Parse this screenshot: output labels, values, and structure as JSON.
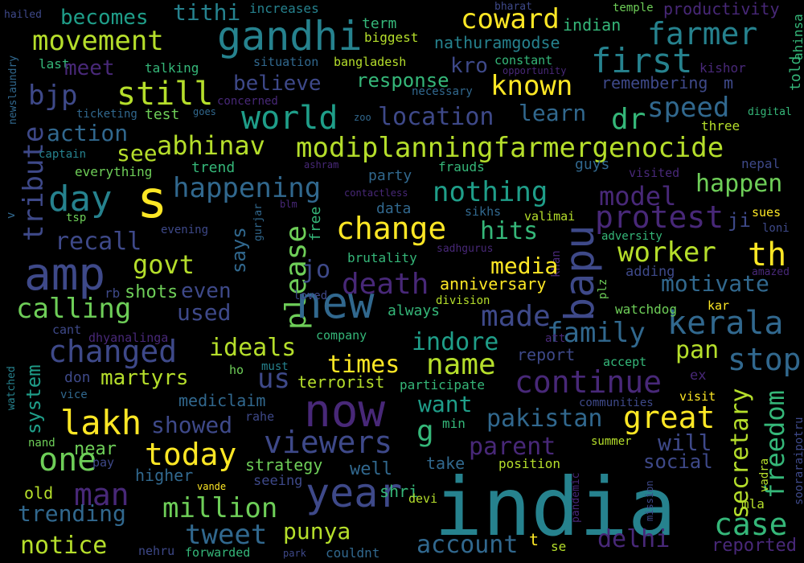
{
  "words": [
    "hailed",
    "increases",
    "temple",
    "bharat",
    "becomes",
    "tithi",
    "productivity",
    "coward",
    "term",
    "gandhi",
    "farmer",
    "movement",
    "biggest",
    "nathuramgodse",
    "indian",
    "ahinsa",
    "newslaundry",
    "last",
    "meet",
    "talking",
    "situation",
    "bangladesh",
    "kro",
    "constant",
    "opportunity",
    "first",
    "kishor",
    "told",
    "bjp",
    "still",
    "believe",
    "response",
    "known",
    "remembering",
    "m",
    "concerned",
    "necessary",
    "world",
    "location",
    "speed",
    "learn",
    "ticketing",
    "goes",
    "test",
    "zoo",
    "digital",
    "dr",
    "tribute",
    "action",
    "three",
    "see",
    "abhinav",
    "modiplanningfarmergenocide",
    "captain",
    "ashram",
    "frauds",
    "guys",
    "nepal",
    "everything",
    "trend",
    "party",
    "visited",
    "day",
    "s",
    "happening",
    "nothing",
    "happen",
    "model",
    "contactless",
    "blm",
    "free",
    "sikhs",
    "data",
    "gurjar",
    "v",
    "tsp",
    "evening",
    "protest",
    "ji",
    "sues",
    "loni",
    "change",
    "hits",
    "valimai",
    "says",
    "please",
    "recall",
    "govt",
    "adversity",
    "worker",
    "th",
    "brutality",
    "sadhgurus",
    "khan",
    "media",
    "jo",
    "plz",
    "amp",
    "death",
    "bapu",
    "adding",
    "amazed",
    "rb",
    "shots",
    "even",
    "anniversary",
    "motivate",
    "new",
    "calling",
    "used",
    "loved",
    "division",
    "kar",
    "made",
    "always",
    "kerala",
    "family",
    "watchdog",
    "cant",
    "dhyanalinga",
    "company",
    "indore",
    "att",
    "changed",
    "ideals",
    "watched",
    "pan",
    "stop",
    "report",
    "accept",
    "times",
    "name",
    "must",
    "ho",
    "don",
    "martyrs",
    "us",
    "continue",
    "terrorist",
    "ex",
    "participate",
    "vice",
    "visit",
    "secretary",
    "mediclaim",
    "now",
    "communities",
    "lakh",
    "showed",
    "rahe",
    "want",
    "great",
    "freedom",
    "system",
    "g",
    "sooraraipotru",
    "pakistan",
    "min",
    "vadra",
    "viewers",
    "parent",
    "will",
    "one",
    "today",
    "nand",
    "near",
    "summer",
    "take",
    "india",
    "pay",
    "social",
    "strategy",
    "higher",
    "well",
    "position",
    "pandemic",
    "mission",
    "vande",
    "seeing",
    "year",
    "old",
    "man",
    "million",
    "trending",
    "shri",
    "devi",
    "mla",
    "case",
    "tweet",
    "punya",
    "delhi",
    "notice",
    "account",
    "t",
    "se",
    "nehru",
    "forwarded",
    "park",
    "couldnt",
    "reported"
  ]
}
